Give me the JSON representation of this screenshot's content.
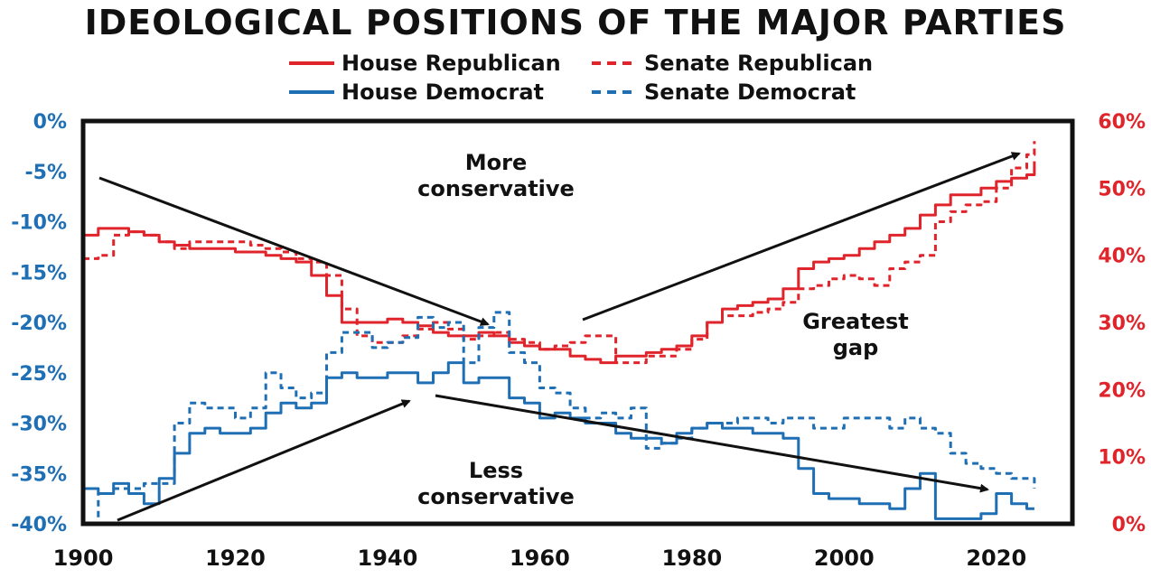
{
  "chart_data": {
    "type": "line",
    "title": "IDEOLOGICAL POSITIONS OF THE MAJOR PARTIES",
    "colors": {
      "republican": "#e0242b",
      "democrat": "#1f6fb5",
      "frame": "#111111"
    },
    "legend": [
      {
        "label": "House Republican",
        "color": "#e0242b",
        "style": "solid"
      },
      {
        "label": "Senate Republican",
        "color": "#e0242b",
        "style": "dashed"
      },
      {
        "label": "House Democrat",
        "color": "#1f6fb5",
        "style": "solid"
      },
      {
        "label": "Senate Democrat",
        "color": "#1f6fb5",
        "style": "dashed"
      }
    ],
    "x_ticks": [
      "1900",
      "1920",
      "1940",
      "1960",
      "1980",
      "2000",
      "2020"
    ],
    "xlim": [
      1900,
      2030
    ],
    "left_axis": {
      "ticks": [
        "0%",
        "-5%",
        "-10%",
        "-15%",
        "-20%",
        "-25%",
        "-30%",
        "-35%",
        "-40%"
      ],
      "ylim": [
        -40,
        0
      ],
      "color": "#1f6fb5",
      "applies_to": "democrat"
    },
    "right_axis": {
      "ticks": [
        "60%",
        "50%",
        "40%",
        "30%",
        "20%",
        "10%",
        "0%"
      ],
      "ylim": [
        0,
        60
      ],
      "color": "#e0242b",
      "applies_to": "republican"
    },
    "annotations": [
      {
        "lines": [
          "More",
          "conservative"
        ]
      },
      {
        "lines": [
          "Greatest",
          "gap"
        ]
      },
      {
        "lines": [
          "Less",
          "conservative"
        ]
      }
    ],
    "series": [
      {
        "name": "House Republican",
        "axis": "right",
        "style": "solid",
        "x": [
          1900,
          1902,
          1904,
          1906,
          1908,
          1910,
          1912,
          1914,
          1916,
          1918,
          1920,
          1922,
          1924,
          1926,
          1928,
          1930,
          1932,
          1934,
          1936,
          1938,
          1940,
          1942,
          1944,
          1946,
          1948,
          1950,
          1952,
          1954,
          1956,
          1958,
          1960,
          1962,
          1964,
          1966,
          1968,
          1970,
          1972,
          1974,
          1976,
          1978,
          1980,
          1982,
          1984,
          1986,
          1988,
          1990,
          1992,
          1994,
          1996,
          1998,
          2000,
          2002,
          2004,
          2006,
          2008,
          2010,
          2012,
          2014,
          2016,
          2018,
          2020,
          2022,
          2024,
          2025
        ],
        "values": [
          43,
          44,
          44,
          43.5,
          43,
          42,
          41.5,
          41,
          41,
          41,
          40.5,
          40.5,
          40,
          39.5,
          39,
          37,
          34,
          30,
          30,
          30,
          30.5,
          30,
          29.5,
          28.5,
          28,
          28,
          28.5,
          28,
          27,
          26.5,
          26,
          26,
          25,
          24.5,
          24,
          25,
          25,
          25.5,
          26,
          26.5,
          28,
          30,
          32,
          32.5,
          33,
          33.5,
          35,
          38,
          39,
          39.5,
          40,
          41,
          42,
          43,
          44,
          46,
          47.5,
          49,
          49,
          50,
          51,
          51.5,
          52,
          54
        ]
      },
      {
        "name": "Senate Republican",
        "axis": "right",
        "style": "dashed",
        "x": [
          1900,
          1902,
          1904,
          1906,
          1908,
          1910,
          1912,
          1914,
          1916,
          1918,
          1920,
          1922,
          1924,
          1926,
          1928,
          1930,
          1932,
          1934,
          1936,
          1938,
          1940,
          1942,
          1944,
          1946,
          1948,
          1950,
          1952,
          1954,
          1956,
          1958,
          1960,
          1962,
          1964,
          1966,
          1968,
          1970,
          1972,
          1974,
          1976,
          1978,
          1980,
          1982,
          1984,
          1986,
          1988,
          1990,
          1992,
          1994,
          1996,
          1998,
          2000,
          2002,
          2004,
          2006,
          2008,
          2010,
          2012,
          2014,
          2016,
          2018,
          2020,
          2022,
          2024,
          2025
        ],
        "values": [
          39.5,
          40,
          43,
          43.5,
          43,
          42,
          41,
          42,
          42,
          42,
          42,
          41.5,
          41,
          40.5,
          39.5,
          39,
          37,
          32,
          28,
          27,
          27,
          28,
          29,
          30,
          29,
          27.5,
          28,
          28.5,
          27.5,
          27,
          26,
          26.5,
          27,
          28,
          28,
          24,
          24,
          25,
          25,
          26,
          27.5,
          30,
          31,
          31,
          31.5,
          32,
          33,
          35,
          35.5,
          36.5,
          37,
          36.5,
          35.5,
          38,
          39,
          40,
          45,
          46.5,
          47.5,
          48,
          50,
          53,
          55,
          57
        ]
      },
      {
        "name": "House Democrat",
        "axis": "left",
        "style": "solid",
        "x": [
          1900,
          1902,
          1904,
          1906,
          1908,
          1910,
          1912,
          1914,
          1916,
          1918,
          1920,
          1922,
          1924,
          1926,
          1928,
          1930,
          1932,
          1934,
          1936,
          1938,
          1940,
          1942,
          1944,
          1946,
          1948,
          1950,
          1952,
          1954,
          1956,
          1958,
          1960,
          1962,
          1964,
          1966,
          1968,
          1970,
          1972,
          1974,
          1976,
          1978,
          1980,
          1982,
          1984,
          1986,
          1988,
          1990,
          1992,
          1994,
          1996,
          1998,
          2000,
          2002,
          2004,
          2006,
          2008,
          2010,
          2012,
          2014,
          2016,
          2018,
          2020,
          2022,
          2024,
          2025
        ],
        "values": [
          -36.5,
          -37,
          -36,
          -37,
          -38,
          -35.5,
          -33,
          -31,
          -30.5,
          -31,
          -31,
          -30.5,
          -29,
          -28,
          -28.5,
          -28,
          -25.5,
          -25,
          -25.5,
          -25.5,
          -25,
          -25,
          -26,
          -25,
          -24,
          -26,
          -25.5,
          -25.5,
          -27.5,
          -28,
          -29.5,
          -29,
          -29.5,
          -30,
          -30,
          -31,
          -31.5,
          -31.5,
          -32,
          -31,
          -30.5,
          -30,
          -30.5,
          -30.5,
          -31,
          -31,
          -31.5,
          -34.5,
          -37,
          -37.5,
          -37.5,
          -38,
          -38,
          -38.5,
          -36.5,
          -35,
          -39.5,
          -39.5,
          -39.5,
          -39,
          -37,
          -38,
          -38.5,
          -38.5
        ]
      },
      {
        "name": "Senate Democrat",
        "axis": "left",
        "style": "dashed",
        "x": [
          1900,
          1902,
          1904,
          1906,
          1908,
          1910,
          1912,
          1914,
          1916,
          1918,
          1920,
          1922,
          1924,
          1926,
          1928,
          1930,
          1932,
          1934,
          1936,
          1938,
          1940,
          1942,
          1944,
          1946,
          1948,
          1950,
          1952,
          1954,
          1956,
          1958,
          1960,
          1962,
          1964,
          1966,
          1968,
          1970,
          1972,
          1974,
          1976,
          1978,
          1980,
          1982,
          1984,
          1986,
          1988,
          1990,
          1992,
          1994,
          1996,
          1998,
          2000,
          2002,
          2004,
          2006,
          2008,
          2010,
          2012,
          2014,
          2016,
          2018,
          2020,
          2022,
          2024,
          2025
        ],
        "values": [
          -40,
          -37,
          -36.5,
          -36.5,
          -36,
          -36,
          -30,
          -28,
          -28.5,
          -28.5,
          -29.5,
          -28.5,
          -25,
          -26.5,
          -27.5,
          -27,
          -23,
          -21,
          -21,
          -22.5,
          -22,
          -21.5,
          -19.5,
          -20.5,
          -20,
          -24,
          -20.5,
          -19,
          -23,
          -24,
          -26.5,
          -27,
          -28.5,
          -29.5,
          -29,
          -29.5,
          -28.5,
          -32.5,
          -32,
          -31.5,
          -30.5,
          -30,
          -30,
          -29.5,
          -29.5,
          -30,
          -29.5,
          -29.5,
          -30.5,
          -30.5,
          -29.5,
          -29.5,
          -29.5,
          -30.5,
          -29.5,
          -30.5,
          -31,
          -33,
          -34,
          -34.5,
          -35,
          -35.5,
          -35.5,
          -36.5
        ]
      }
    ]
  }
}
